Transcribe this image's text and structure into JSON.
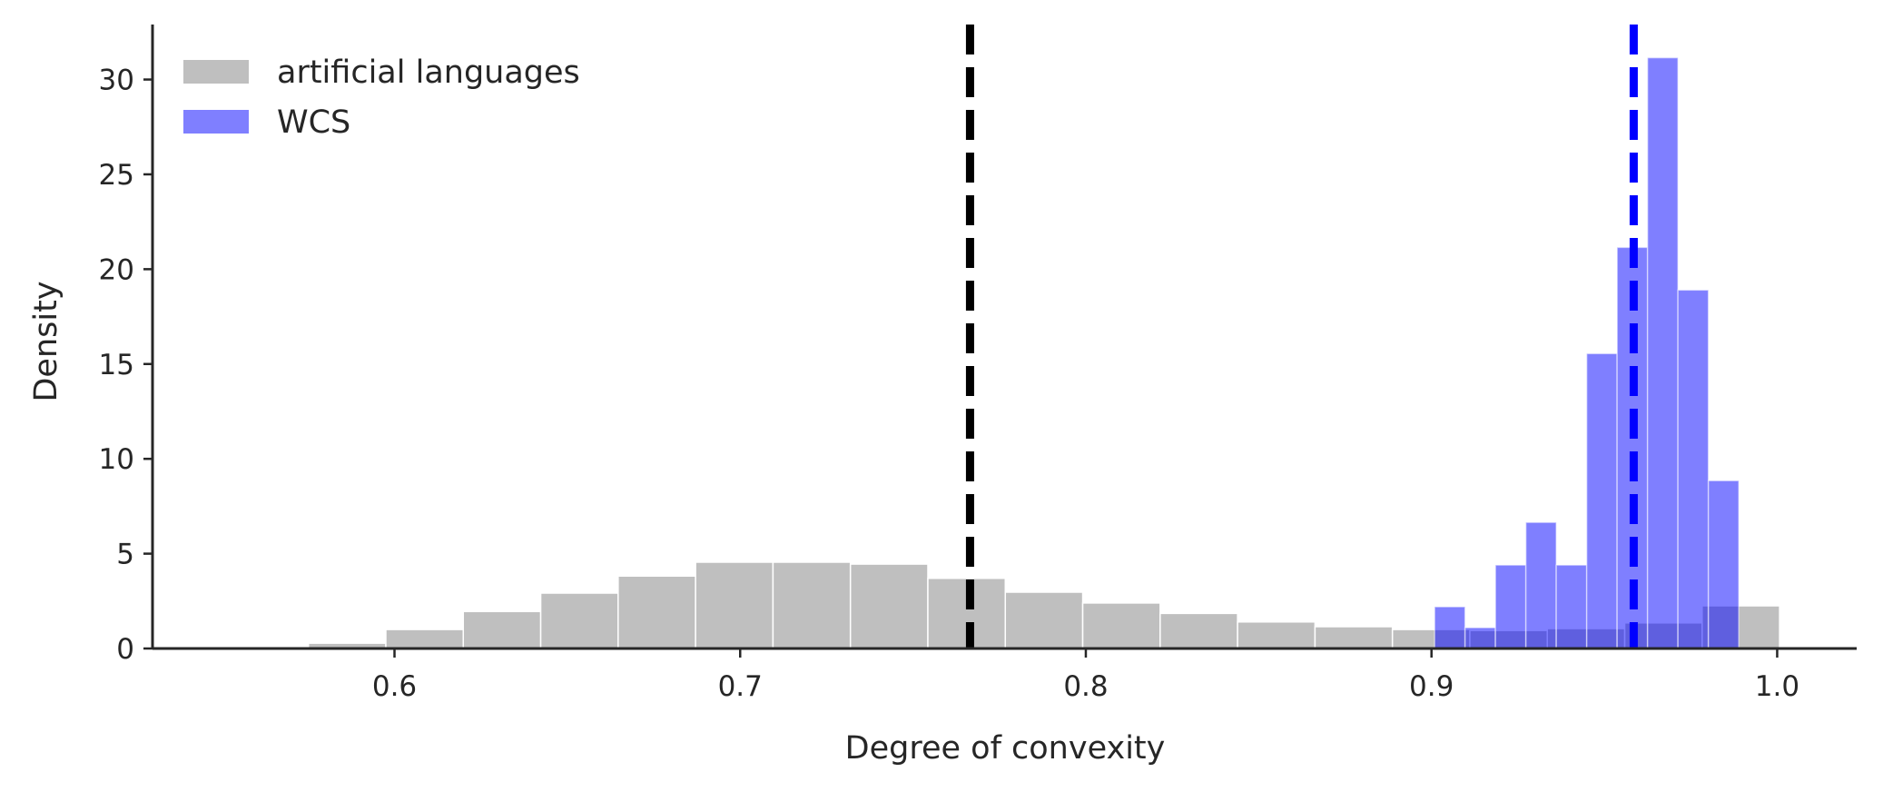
{
  "chart_data": {
    "type": "histogram",
    "xlabel": "Degree of convexity",
    "ylabel": "Density",
    "xlim": [
      0.53,
      1.023
    ],
    "ylim": [
      0,
      32.9
    ],
    "xticks": [
      "0.6",
      "0.7",
      "0.8",
      "0.9",
      "1.0"
    ],
    "xtick_values": [
      0.6,
      0.7,
      0.8,
      0.9,
      1.0
    ],
    "yticks": [
      "0",
      "5",
      "10",
      "15",
      "20",
      "25",
      "30"
    ],
    "ytick_values": [
      0,
      5,
      10,
      15,
      20,
      25,
      30
    ],
    "grid": false,
    "legend_position": "top-left",
    "series": [
      {
        "name": "artificial languages",
        "color": "#bfbfbf",
        "bins": [
          {
            "x0": 0.5751,
            "x1": 0.5975,
            "value": 0.28
          },
          {
            "x0": 0.5975,
            "x1": 0.6199,
            "value": 1.0
          },
          {
            "x0": 0.6199,
            "x1": 0.6423,
            "value": 1.95
          },
          {
            "x0": 0.6423,
            "x1": 0.6647,
            "value": 2.92
          },
          {
            "x0": 0.6647,
            "x1": 0.6871,
            "value": 3.82
          },
          {
            "x0": 0.6871,
            "x1": 0.7095,
            "value": 4.55
          },
          {
            "x0": 0.7095,
            "x1": 0.7319,
            "value": 4.55
          },
          {
            "x0": 0.7319,
            "x1": 0.7543,
            "value": 4.45
          },
          {
            "x0": 0.7543,
            "x1": 0.7767,
            "value": 3.7
          },
          {
            "x0": 0.7767,
            "x1": 0.7991,
            "value": 2.97
          },
          {
            "x0": 0.7991,
            "x1": 0.8215,
            "value": 2.4
          },
          {
            "x0": 0.8215,
            "x1": 0.8439,
            "value": 1.85
          },
          {
            "x0": 0.8439,
            "x1": 0.8663,
            "value": 1.4
          },
          {
            "x0": 0.8663,
            "x1": 0.8887,
            "value": 1.15
          },
          {
            "x0": 0.8887,
            "x1": 0.9111,
            "value": 1.0
          },
          {
            "x0": 0.9111,
            "x1": 0.9335,
            "value": 0.95
          },
          {
            "x0": 0.9335,
            "x1": 0.9559,
            "value": 1.05
          },
          {
            "x0": 0.9559,
            "x1": 0.9783,
            "value": 1.35
          },
          {
            "x0": 0.9783,
            "x1": 1.0007,
            "value": 2.25
          }
        ]
      },
      {
        "name": "WCS",
        "color": "#0000ff",
        "opacity": 0.5,
        "bins": [
          {
            "x0": 0.9009,
            "x1": 0.9097,
            "value": 2.2
          },
          {
            "x0": 0.9097,
            "x1": 0.9185,
            "value": 1.1
          },
          {
            "x0": 0.9185,
            "x1": 0.9273,
            "value": 4.4
          },
          {
            "x0": 0.9273,
            "x1": 0.9361,
            "value": 6.65
          },
          {
            "x0": 0.9361,
            "x1": 0.9449,
            "value": 4.4
          },
          {
            "x0": 0.9449,
            "x1": 0.9537,
            "value": 15.55
          },
          {
            "x0": 0.9537,
            "x1": 0.9625,
            "value": 21.15
          },
          {
            "x0": 0.9625,
            "x1": 0.9713,
            "value": 31.15
          },
          {
            "x0": 0.9713,
            "x1": 0.9801,
            "value": 18.9
          },
          {
            "x0": 0.9801,
            "x1": 0.9889,
            "value": 8.85
          }
        ]
      }
    ],
    "reference_lines": [
      {
        "x": 0.7665,
        "color": "#000000",
        "style": "dashed"
      },
      {
        "x": 0.9585,
        "color": "#0000ff",
        "style": "dashed"
      }
    ]
  }
}
